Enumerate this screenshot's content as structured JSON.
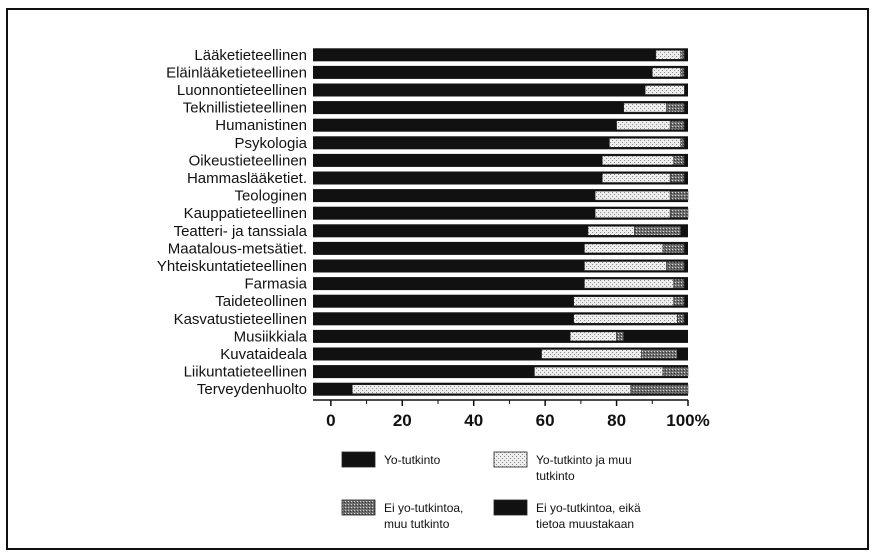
{
  "chart_data": {
    "type": "bar",
    "stacked": true,
    "orientation": "horizontal",
    "categories": [
      "Lääketieteellinen",
      "Eläinlääketieteellinen",
      "Luonnontieteellinen",
      "Teknillistieteellinen",
      "Humanistinen",
      "Psykologia",
      "Oikeustieteellinen",
      "Hammaslääketiet.",
      "Teologinen",
      "Kauppatieteellinen",
      "Teatteri- ja tanssiala",
      "Maatalous-metsätiet.",
      "Yhteiskuntatieteellinen",
      "Farmasia",
      "Taideteollinen",
      "Kasvatustieteellinen",
      "Musiikkiala",
      "Kuvataideala",
      "Liikuntatieteellinen",
      "Terveydenhuolto"
    ],
    "series": [
      {
        "name": "Yo-tutkinto",
        "color": "#111111",
        "values": [
          91,
          90,
          88,
          82,
          80,
          78,
          76,
          76,
          74,
          74,
          72,
          71,
          71,
          71,
          68,
          68,
          67,
          59,
          57,
          6
        ]
      },
      {
        "name": "Yo-tutkinto ja muu tutkinto",
        "color": "#e4e4e4",
        "values": [
          7,
          8,
          11,
          12,
          15,
          20,
          20,
          19,
          21,
          21,
          13,
          22,
          23,
          25,
          28,
          29,
          13,
          28,
          36,
          78
        ]
      },
      {
        "name": "Ei yo-tutkintoa, muu tutkinto",
        "color": "#8a8a8a",
        "values": [
          1,
          1,
          0,
          5,
          4,
          1,
          3,
          4,
          5,
          5,
          13,
          6,
          5,
          3,
          3,
          2,
          2,
          10,
          7,
          16
        ]
      },
      {
        "name": "Ei yo-tutkintoa, eikä tietoa muustakaan",
        "color": "#111111",
        "values": [
          1,
          1,
          1,
          1,
          1,
          1,
          1,
          1,
          0,
          0,
          2,
          1,
          1,
          1,
          1,
          1,
          18,
          3,
          0,
          0
        ]
      }
    ],
    "xaxis": {
      "ticks": [
        0,
        20,
        40,
        60,
        80,
        100
      ],
      "tick_labels": [
        "0",
        "20",
        "40",
        "60",
        "80",
        "100%"
      ],
      "range": [
        -5,
        100
      ]
    },
    "legend": {
      "placement": "bottom",
      "entries": [
        {
          "label_lines": [
            "Yo-tutkinto"
          ],
          "series": 0
        },
        {
          "label_lines": [
            "Yo-tutkinto ja muu",
            "tutkinto"
          ],
          "series": 1
        },
        {
          "label_lines": [
            "Ei yo-tutkintoa,",
            "muu tutkinto"
          ],
          "series": 2
        },
        {
          "label_lines": [
            "Ei yo-tutkintoa, eikä",
            "tietoa muustakaan"
          ],
          "series": 3
        }
      ]
    },
    "grid": false
  }
}
